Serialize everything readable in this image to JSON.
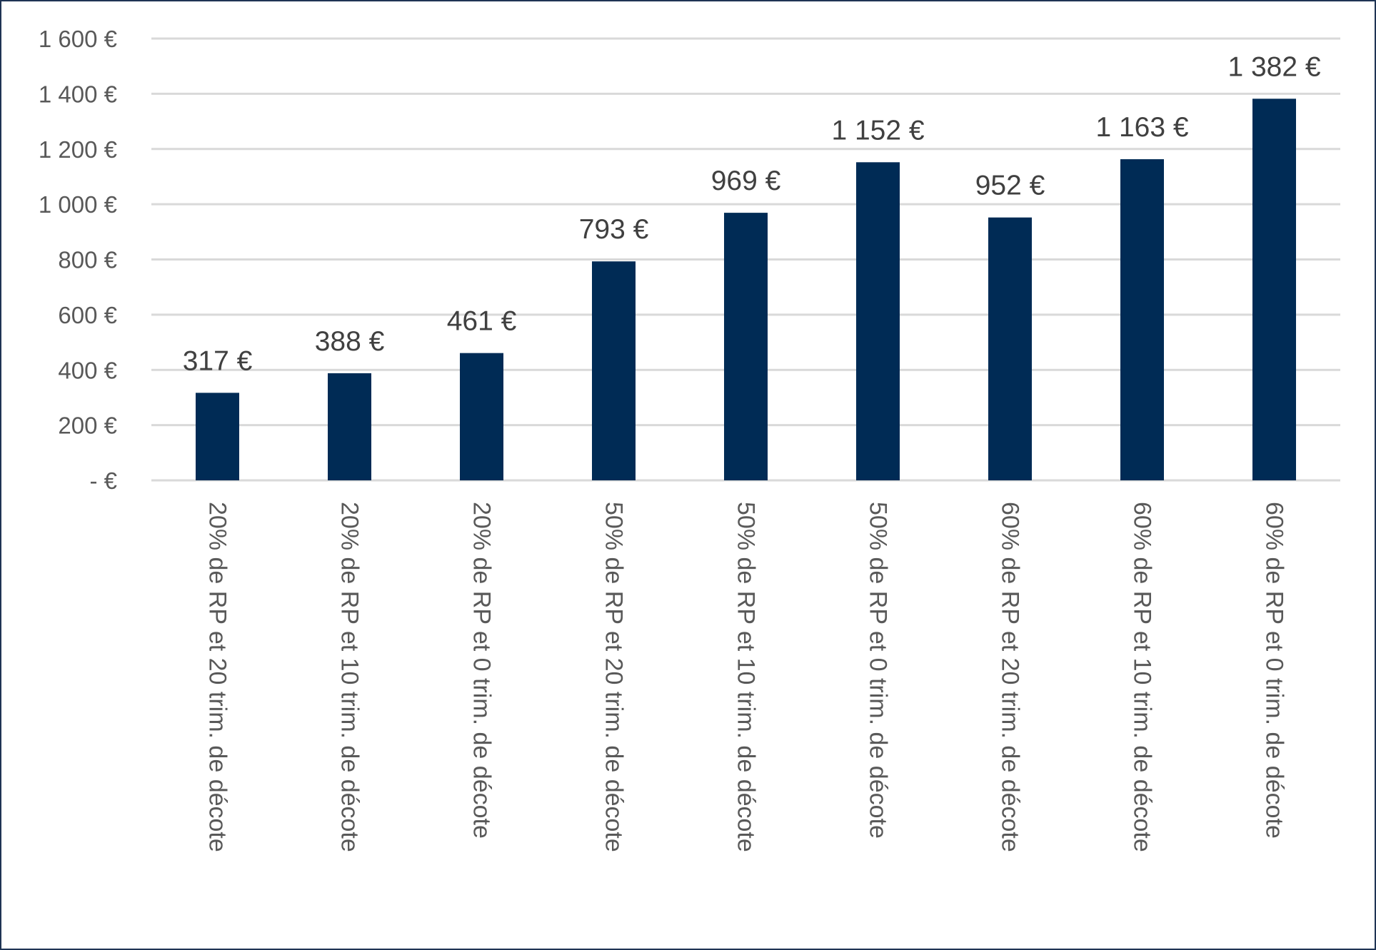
{
  "chart_data": {
    "type": "bar",
    "categories": [
      "20% de RP et 20 trim. de décote",
      "20% de RP et 10 trim. de décote",
      "20% de RP et 0 trim. de décote",
      "50% de RP et 20 trim. de décote",
      "50% de RP et 10 trim. de décote",
      "50% de RP et 0 trim. de décote",
      "60% de RP et 20 trim. de décote",
      "60% de RP et 10 trim. de décote",
      "60% de RP et 0 trim. de décote"
    ],
    "values": [
      317,
      388,
      461,
      793,
      969,
      1152,
      952,
      1163,
      1382
    ],
    "data_labels": [
      "317 €",
      "388 €",
      "461 €",
      "793 €",
      "969 €",
      "1 152 €",
      "952 €",
      "1 163 €",
      "1 382 €"
    ],
    "y_ticks": [
      0,
      200,
      400,
      600,
      800,
      1000,
      1200,
      1400,
      1600
    ],
    "y_tick_labels": [
      "-   €",
      "200 €",
      "400 €",
      "600 €",
      "800 €",
      "1 000 €",
      "1 200 €",
      "1 400 €",
      "1 600 €"
    ],
    "ylim": [
      0,
      1600
    ],
    "grid": true,
    "legend": "none",
    "colors": {
      "bar": "#002b55",
      "grid": "#d9d9d9",
      "border": "#1f3454"
    }
  }
}
